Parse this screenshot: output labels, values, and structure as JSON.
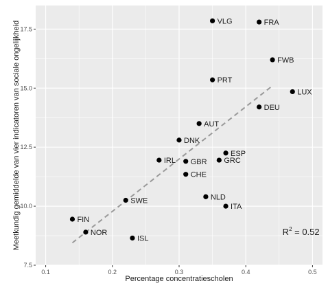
{
  "chart_data": {
    "type": "scatter",
    "xlabel": "Percentage concentratiescholen",
    "ylabel": "Meetkundig gemiddelde van vier indicatoren van sociale ongelijkheid",
    "xlim": [
      0.085,
      0.515
    ],
    "ylim": [
      7.5,
      18.5
    ],
    "x_ticks": [
      {
        "value": 0.1,
        "label": "0.1"
      },
      {
        "value": 0.2,
        "label": "0.2"
      },
      {
        "value": 0.3,
        "label": "0.3"
      },
      {
        "value": 0.4,
        "label": "0.4"
      },
      {
        "value": 0.5,
        "label": "0.5"
      }
    ],
    "y_ticks": [
      {
        "value": 7.5,
        "label": "7.5"
      },
      {
        "value": 10.0,
        "label": "10.0"
      },
      {
        "value": 12.5,
        "label": "12.5"
      },
      {
        "value": 15.0,
        "label": "15.0"
      },
      {
        "value": 17.5,
        "label": "17.5"
      }
    ],
    "grid": true,
    "background": "#ebebeb",
    "grid_color": "#ffffff",
    "point_color": "#000000",
    "trend_color": "#999999",
    "points": [
      {
        "label": "VLG",
        "x": 0.35,
        "y": 17.85
      },
      {
        "label": "FRA",
        "x": 0.42,
        "y": 17.8
      },
      {
        "label": "FWB",
        "x": 0.44,
        "y": 16.2
      },
      {
        "label": "LUX",
        "x": 0.47,
        "y": 14.85
      },
      {
        "label": "PRT",
        "x": 0.35,
        "y": 15.35
      },
      {
        "label": "DEU",
        "x": 0.42,
        "y": 14.2
      },
      {
        "label": "AUT",
        "x": 0.33,
        "y": 13.5
      },
      {
        "label": "DNK",
        "x": 0.3,
        "y": 12.8
      },
      {
        "label": "ESP",
        "x": 0.37,
        "y": 12.25
      },
      {
        "label": "GRC",
        "x": 0.36,
        "y": 11.95
      },
      {
        "label": "IRL",
        "x": 0.27,
        "y": 11.95
      },
      {
        "label": "GBR",
        "x": 0.31,
        "y": 11.9
      },
      {
        "label": "CHE",
        "x": 0.31,
        "y": 11.35
      },
      {
        "label": "SWE",
        "x": 0.22,
        "y": 10.25
      },
      {
        "label": "NLD",
        "x": 0.34,
        "y": 10.4
      },
      {
        "label": "ITA",
        "x": 0.37,
        "y": 10.0
      },
      {
        "label": "FIN",
        "x": 0.14,
        "y": 9.45
      },
      {
        "label": "NOR",
        "x": 0.16,
        "y": 8.9
      },
      {
        "label": "ISL",
        "x": 0.23,
        "y": 8.65
      }
    ],
    "trendline": {
      "x": [
        0.14,
        0.44
      ],
      "y": [
        8.45,
        15.1
      ]
    },
    "annotation": {
      "base": "R",
      "sup": "2",
      "rest": " = 0.52",
      "x": 0.455,
      "y": 8.9
    }
  }
}
